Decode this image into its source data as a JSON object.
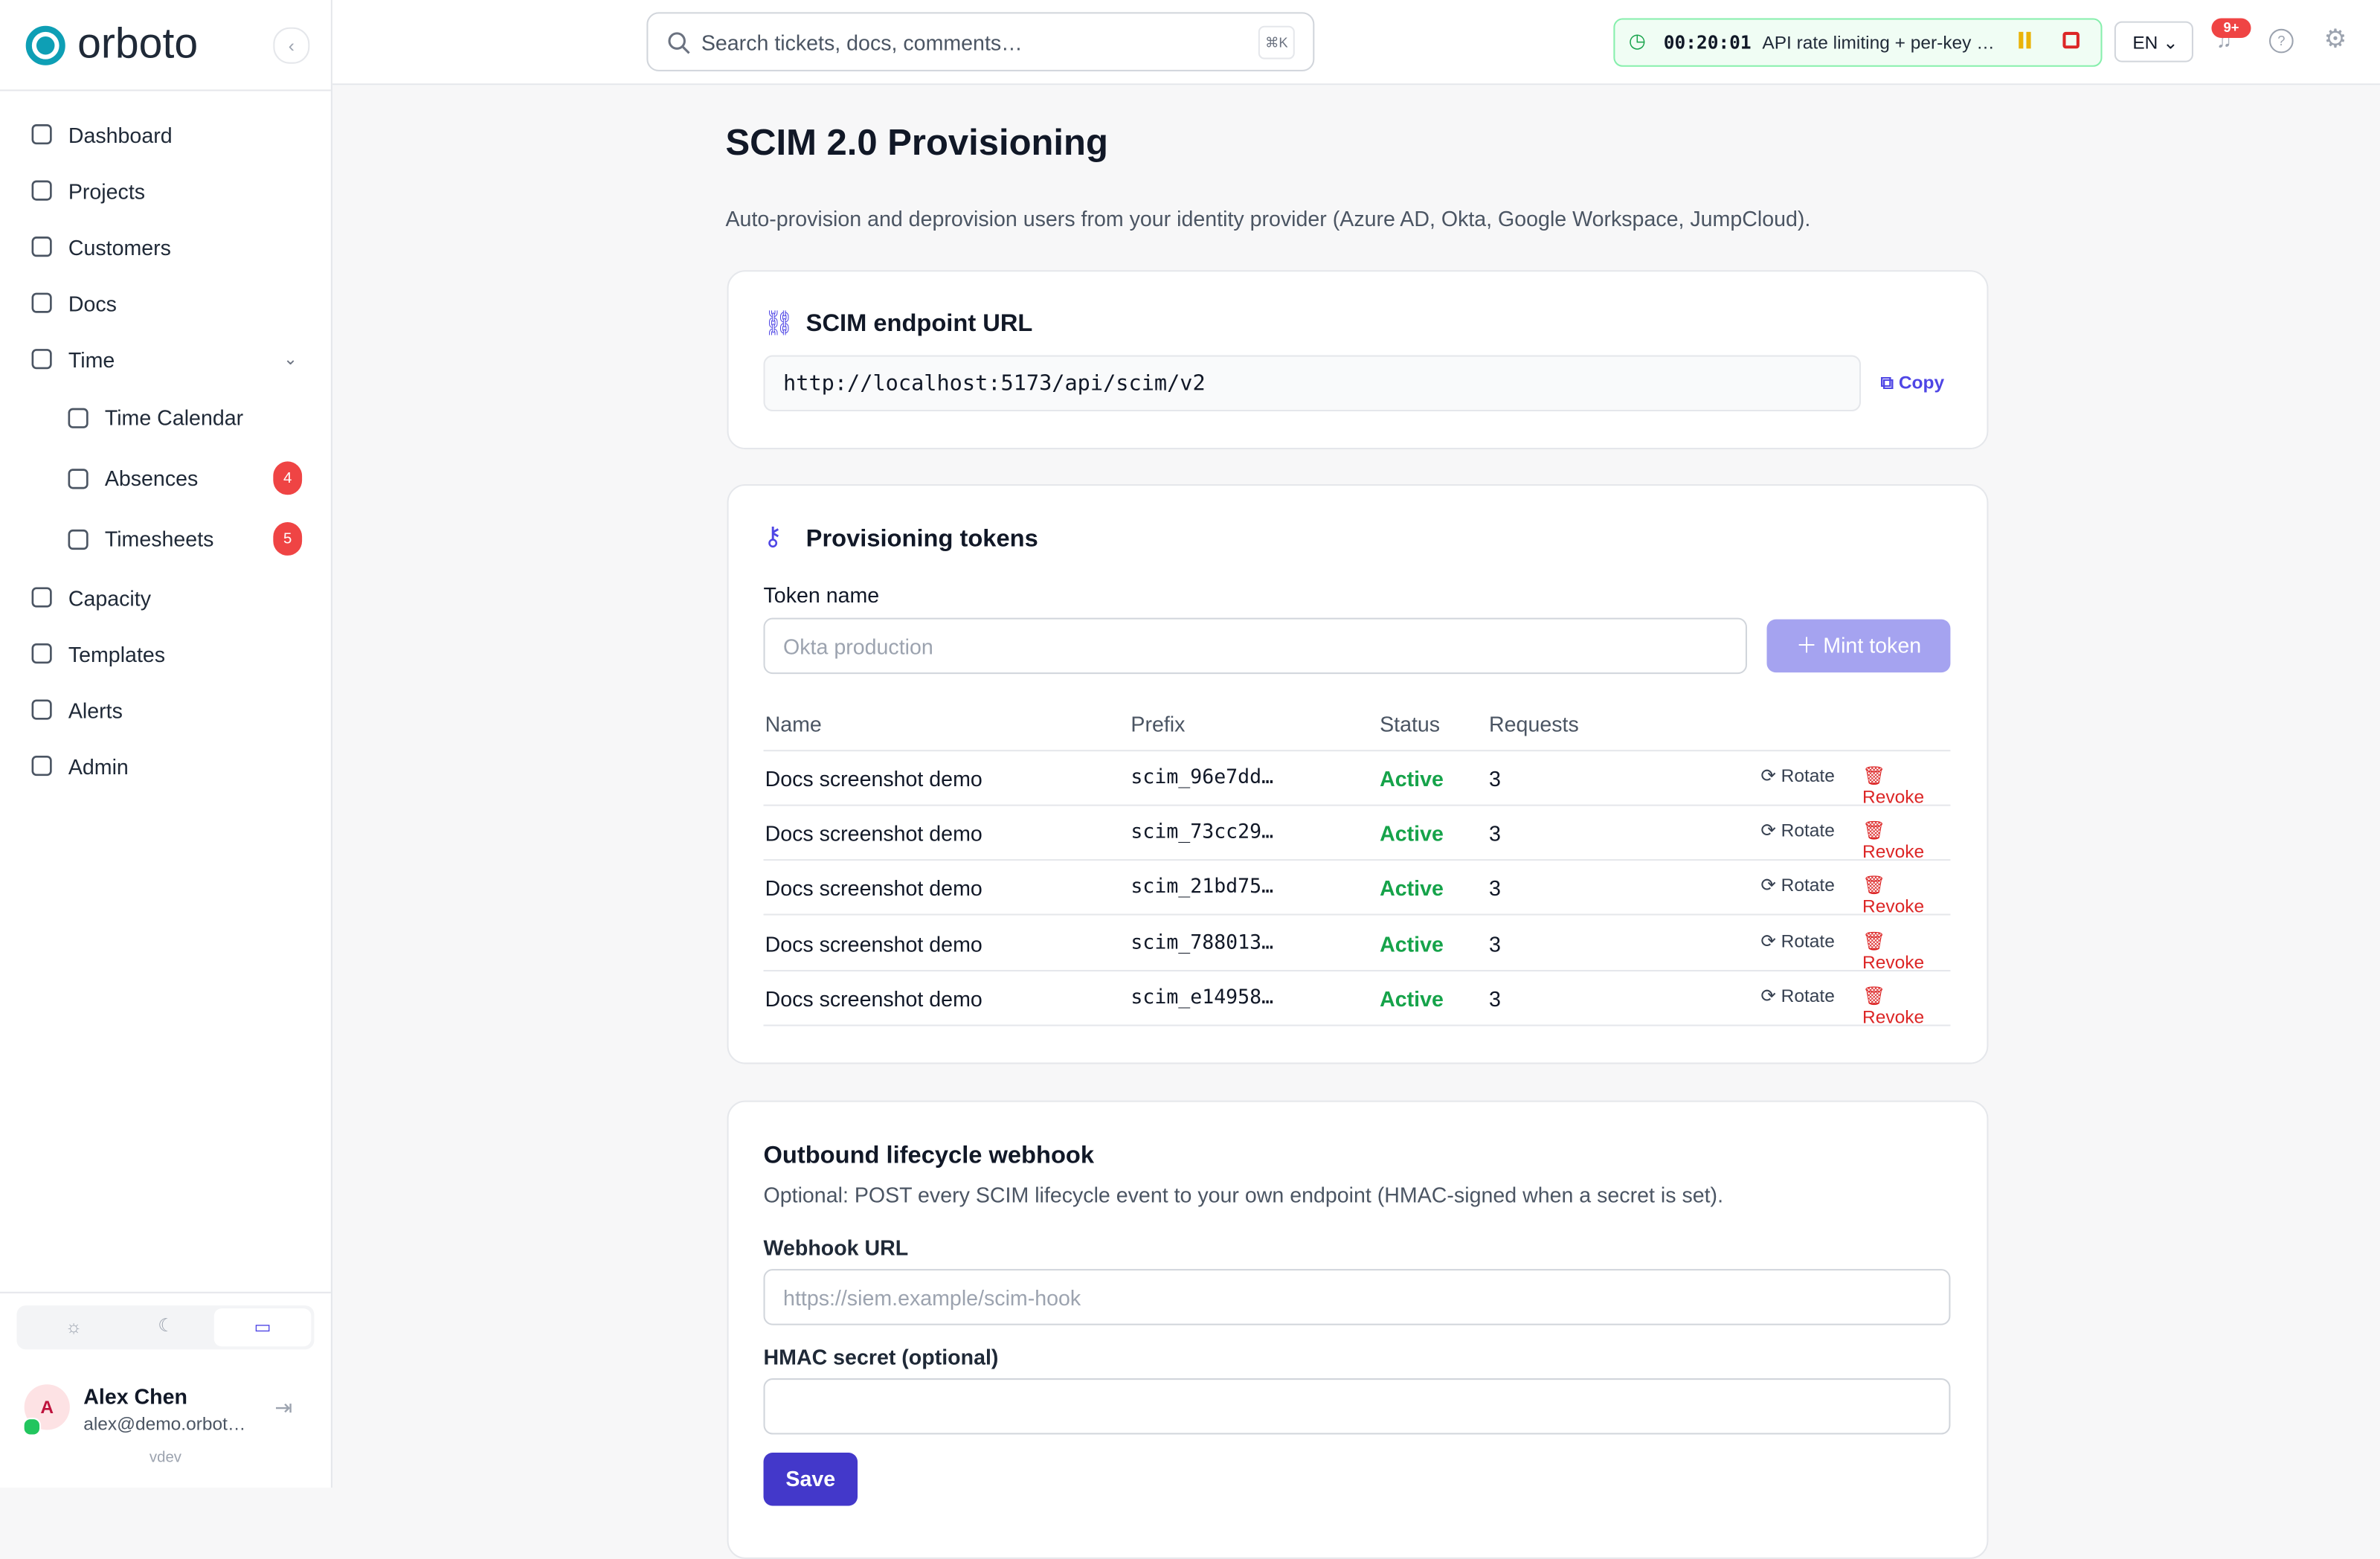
{
  "sidebar": {
    "brand": "orboto",
    "nav": [
      {
        "label": "Dashboard"
      },
      {
        "label": "Projects"
      },
      {
        "label": "Customers"
      },
      {
        "label": "Docs"
      },
      {
        "label": "Time",
        "children": [
          {
            "label": "Time Calendar"
          },
          {
            "label": "Absences",
            "badge": 4
          },
          {
            "label": "Timesheets",
            "badge": 5
          }
        ]
      },
      {
        "label": "Capacity"
      },
      {
        "label": "Templates"
      },
      {
        "label": "Alerts"
      },
      {
        "label": "Admin"
      }
    ],
    "user": {
      "avatar": "A",
      "name": "Alex Chen",
      "email": "alex@demo.orbot…"
    },
    "version": "vdev"
  },
  "topbar": {
    "search_placeholder": "Search tickets, docs, comments…",
    "shortcut": "⌘K",
    "timer": "00:20:01",
    "timer_task": "API rate limiting + per-key …",
    "language": "EN",
    "notifications": "9+"
  },
  "page": {
    "title": "SCIM 2.0 Provisioning",
    "description": "Auto-provision and deprovision users from your identity provider (Azure AD, Okta, Google Workspace, JumpCloud).",
    "endpoint": {
      "title": "SCIM endpoint URL",
      "url": "http://localhost:5173/api/scim/v2",
      "copy": "Copy"
    },
    "tokens": {
      "title": "Provisioning tokens",
      "name_label": "Token name",
      "name_placeholder": "Okta production",
      "mint": "Mint token",
      "columns": [
        "Name",
        "Prefix",
        "Status",
        "Requests"
      ],
      "rows": [
        {
          "name": "Docs screenshot demo",
          "prefix": "scim_96e7dd…",
          "status": "Active",
          "requests": 3
        },
        {
          "name": "Docs screenshot demo",
          "prefix": "scim_73cc29…",
          "status": "Active",
          "requests": 3
        },
        {
          "name": "Docs screenshot demo",
          "prefix": "scim_21bd75…",
          "status": "Active",
          "requests": 3
        },
        {
          "name": "Docs screenshot demo",
          "prefix": "scim_788013…",
          "status": "Active",
          "requests": 3
        },
        {
          "name": "Docs screenshot demo",
          "prefix": "scim_e14958…",
          "status": "Active",
          "requests": 3
        }
      ],
      "rotate": "Rotate",
      "revoke": "Revoke"
    },
    "webhook": {
      "title": "Outbound lifecycle webhook",
      "description": "Optional: POST every SCIM lifecycle event to your own endpoint (HMAC-signed when a secret is set).",
      "url_label": "Webhook URL",
      "url_placeholder": "https://siem.example/scim-hook",
      "secret_label": "HMAC secret (optional)",
      "save": "Save"
    }
  }
}
